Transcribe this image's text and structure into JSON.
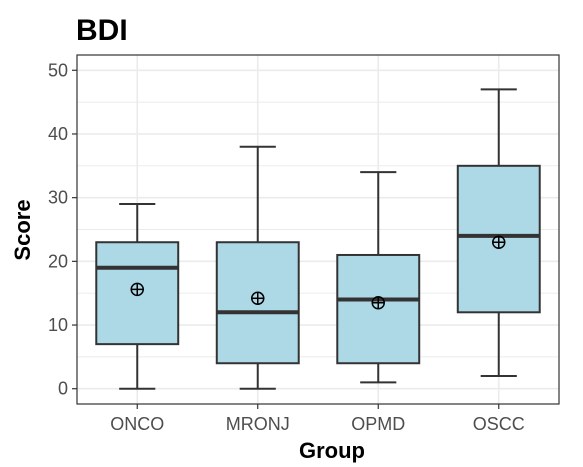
{
  "chart_data": {
    "type": "box",
    "title": "BDI",
    "xlabel": "Group",
    "ylabel": "Score",
    "ylim": [
      -2.4,
      52.4
    ],
    "yticks": [
      0,
      10,
      20,
      30,
      40,
      50
    ],
    "grid": true,
    "categories": [
      "ONCO",
      "MRONJ",
      "OPMD",
      "OSCC"
    ],
    "boxes": [
      {
        "category": "ONCO",
        "min": 0,
        "q1": 7,
        "median": 19,
        "q3": 23,
        "max": 29,
        "mean": 15.6
      },
      {
        "category": "MRONJ",
        "min": 0,
        "q1": 4,
        "median": 12,
        "q3": 23,
        "max": 38,
        "mean": 14.2
      },
      {
        "category": "OPMD",
        "min": 1,
        "q1": 4,
        "median": 14,
        "q3": 21,
        "max": 34,
        "mean": 13.5
      },
      {
        "category": "OSCC",
        "min": 2,
        "q1": 12,
        "median": 24,
        "q3": 35,
        "max": 47,
        "mean": 23.0
      }
    ],
    "colors": {
      "box_fill": "#add8e6",
      "box_stroke": "#333333",
      "grid": "#ebebeb",
      "panel_border": "#333333"
    }
  }
}
